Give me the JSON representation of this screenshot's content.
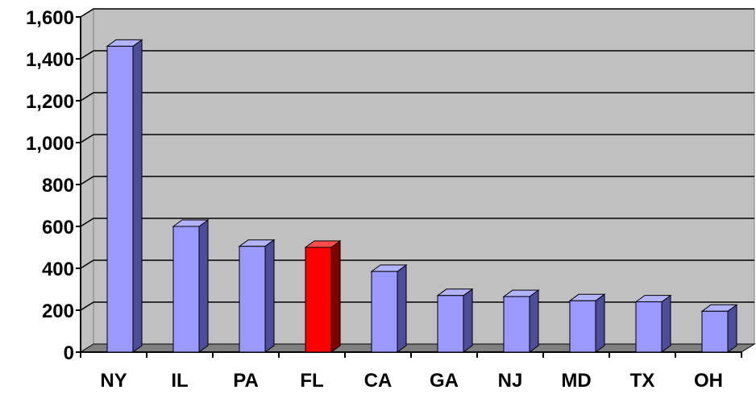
{
  "chart_data": {
    "type": "bar",
    "title": "",
    "xlabel": "",
    "ylabel": "",
    "categories": [
      "NY",
      "IL",
      "PA",
      "FL",
      "CA",
      "GA",
      "NJ",
      "MD",
      "TX",
      "OH"
    ],
    "values": [
      1460,
      600,
      505,
      500,
      385,
      270,
      265,
      245,
      240,
      195
    ],
    "ylim": [
      0,
      1600
    ],
    "yticks": [
      0,
      200,
      400,
      600,
      800,
      1000,
      1200,
      1400,
      1600
    ],
    "ytick_labels": [
      "0",
      "200",
      "400",
      "600",
      "800",
      "1,000",
      "1,200",
      "1,400",
      "1,600"
    ],
    "grid": true,
    "legend": "none",
    "style": "3d-column",
    "colors": {
      "wall": "#c0c0c0",
      "floor": "#808080",
      "bar_default": "#9999ff",
      "bar_default_side": "#4d4d99",
      "bar_default_top": "#b3b3ff",
      "bar_highlight": "#ff0000",
      "bar_highlight_side": "#800000",
      "bar_highlight_top": "#ff4d4d"
    },
    "highlight_category": "FL"
  }
}
